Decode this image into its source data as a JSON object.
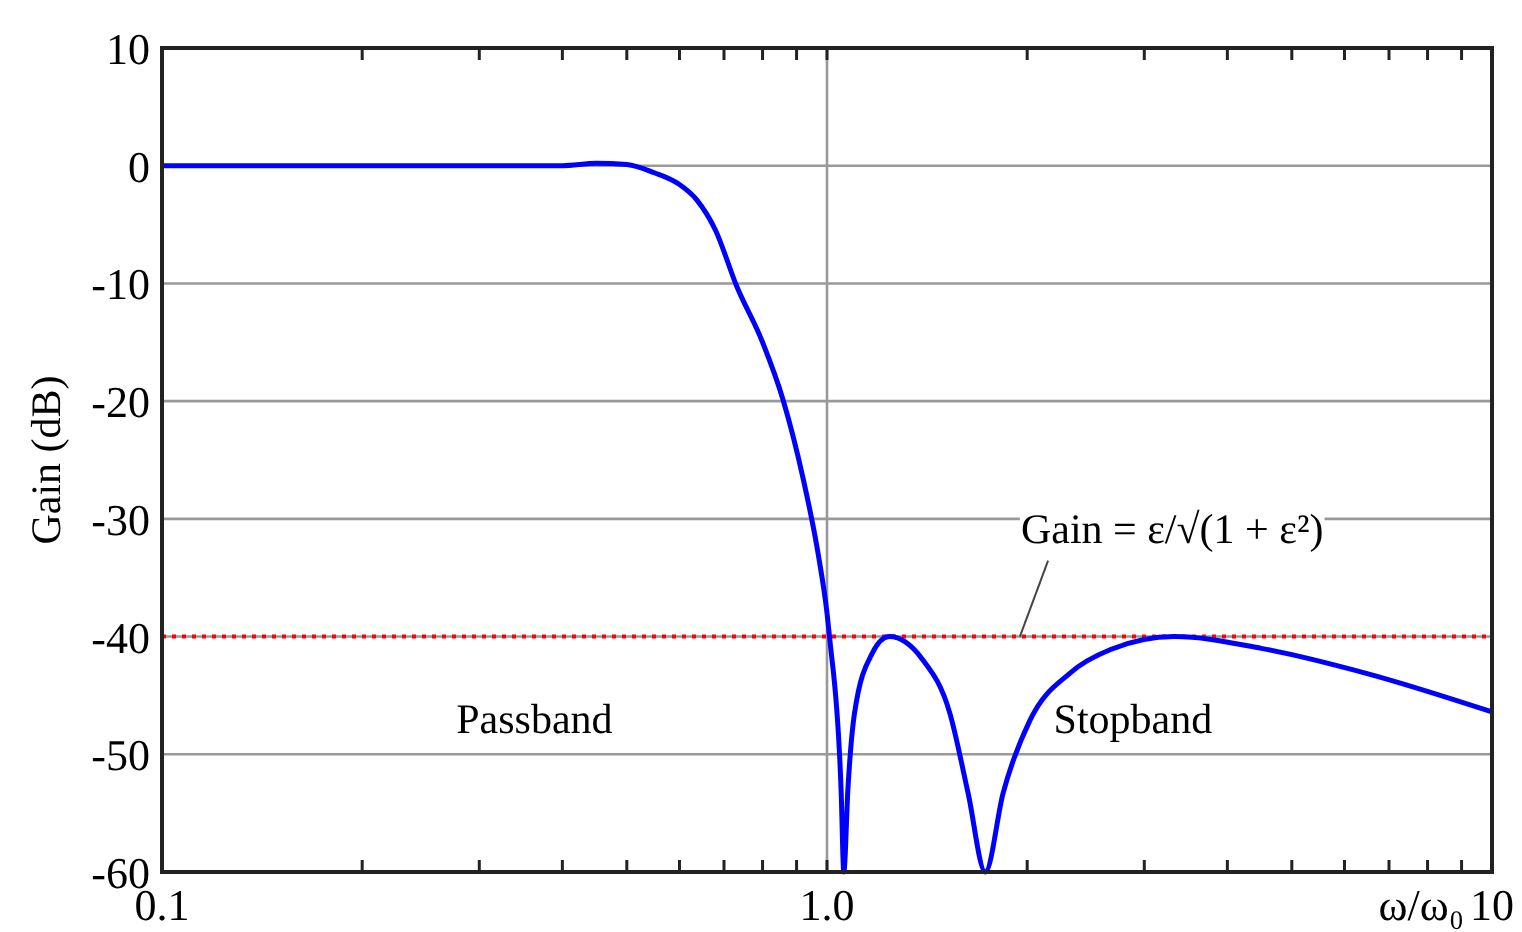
{
  "chart_data": {
    "type": "line",
    "ylabel": "Gain (dB)",
    "xlabel": "ω/ω₀",
    "log": "x",
    "xlim": [
      0.1,
      10
    ],
    "xticks": [
      0.1,
      {
        "value": 0.2,
        "label": null
      },
      {
        "value": 0.3,
        "label": null
      },
      {
        "value": 0.4,
        "label": null
      },
      {
        "value": 0.5,
        "label": null
      },
      {
        "value": 0.6,
        "label": null
      },
      {
        "value": 0.7,
        "label": null
      },
      {
        "value": 0.8,
        "label": null
      },
      {
        "value": 0.9,
        "label": null
      },
      {
        "value": 1,
        "label": "1.0"
      },
      {
        "value": 2,
        "label": null
      },
      {
        "value": 3,
        "label": null
      },
      {
        "value": 4,
        "label": null
      },
      {
        "value": 5,
        "label": null
      },
      {
        "value": 6,
        "label": null
      },
      {
        "value": 7,
        "label": null
      },
      {
        "value": 8,
        "label": null
      },
      {
        "value": 9,
        "label": null
      },
      10
    ],
    "ylim": [
      -60,
      10
    ],
    "yticks": [
      10,
      0,
      -10,
      -20,
      -30,
      -40,
      -50,
      -60
    ],
    "grid": "y",
    "line_style": "solid",
    "marker": "none",
    "series": [
      {
        "color": "#0000ff",
        "x": [
          0.1,
          0.2,
          0.3,
          0.4,
          0.45,
          0.5,
          0.55,
          0.6,
          0.637,
          0.68,
          0.731,
          0.8,
          0.859,
          0.92,
          0.97,
          1.0,
          1.01,
          1.05,
          1.06,
          1.075,
          1.1,
          1.17,
          1.24,
          1.39,
          1.53,
          1.63,
          1.73,
          1.84,
          2.02,
          2.32,
          2.67,
          3.33,
          4.5,
          6.45,
          10
        ],
        "values": [
          0,
          0,
          0,
          0,
          0.2,
          0.1,
          -0.6,
          -1.6,
          -2.9,
          -5.5,
          -10.2,
          -15,
          -19.9,
          -26.5,
          -33,
          -38,
          -40.3,
          -53,
          -60,
          -53,
          -46.5,
          -41.4,
          -40,
          -41.9,
          -46.5,
          -53.3,
          -60,
          -53.3,
          -47.1,
          -43.1,
          -41.1,
          -40,
          -41,
          -43.1,
          -46.4
        ]
      }
    ],
    "ref_lines": [
      {
        "axis": "x",
        "value": 1,
        "color": "#999999",
        "line_style": "solid"
      },
      {
        "axis": "y",
        "value": -40,
        "color": "#ff0000",
        "line_style": "dotted",
        "label": "Gain = ε/√(1 + ε²)"
      }
    ],
    "annotations": [
      "Passband",
      "Stopband"
    ]
  }
}
